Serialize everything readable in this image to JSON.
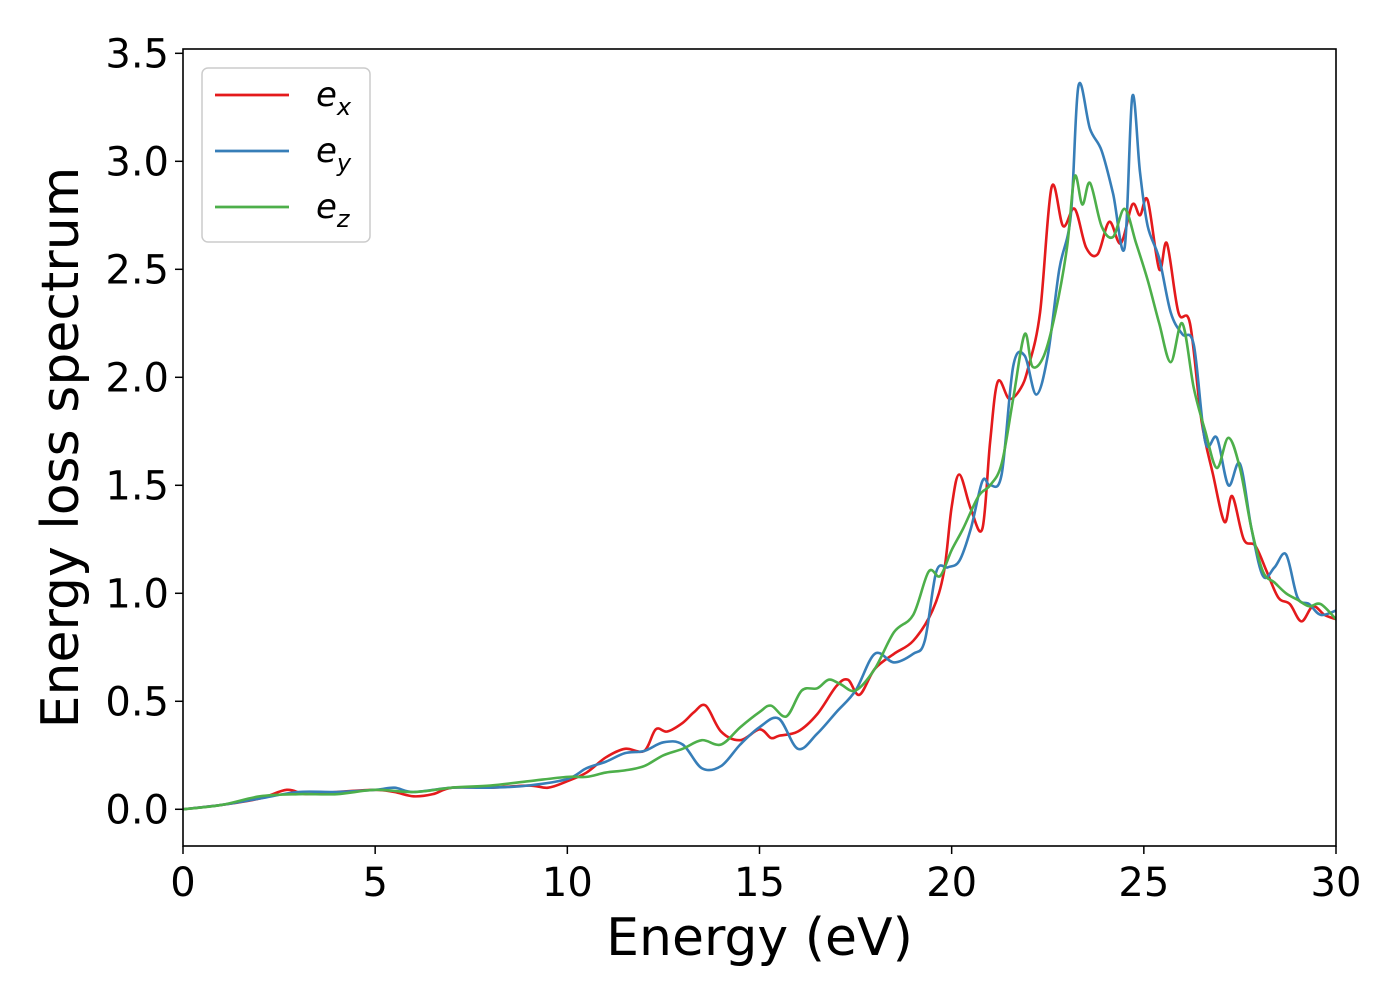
{
  "chart_data": {
    "type": "line",
    "xlabel": "Energy (eV)",
    "ylabel": "Energy loss spectrum",
    "xlim": [
      0,
      30
    ],
    "ylim": [
      -0.17,
      3.52
    ],
    "xticks": [
      0,
      5,
      10,
      15,
      20,
      25,
      30
    ],
    "yticks": [
      0.0,
      0.5,
      1.0,
      1.5,
      2.0,
      2.5,
      3.0,
      3.5
    ],
    "xtick_labels": [
      "0",
      "5",
      "10",
      "15",
      "20",
      "25",
      "30"
    ],
    "ytick_labels": [
      "0.0",
      "0.5",
      "1.0",
      "1.5",
      "2.0",
      "2.5",
      "3.0",
      "3.5"
    ],
    "grid": false,
    "legend_position": "top-left",
    "series": [
      {
        "name": "e_x",
        "legend_base": "e",
        "legend_sub": "x",
        "color": "#e41a1c",
        "x": [
          0,
          1,
          2,
          2.7,
          3.2,
          4,
          5,
          5.5,
          6,
          6.5,
          7,
          8,
          9,
          9.5,
          10,
          10.5,
          11,
          11.5,
          12,
          12.3,
          12.6,
          13,
          13.3,
          13.6,
          14,
          14.5,
          15,
          15.3,
          15.5,
          16,
          16.5,
          17,
          17.3,
          17.6,
          18,
          18.5,
          19,
          19.5,
          19.8,
          20,
          20.2,
          20.5,
          20.8,
          21,
          21.2,
          21.5,
          21.8,
          22,
          22.3,
          22.6,
          22.9,
          23.2,
          23.5,
          23.8,
          24.1,
          24.4,
          24.7,
          24.9,
          25.1,
          25.4,
          25.6,
          25.9,
          26.2,
          26.5,
          26.8,
          27.1,
          27.3,
          27.6,
          27.9,
          28.2,
          28.5,
          28.8,
          29.1,
          29.4,
          29.7,
          30
        ],
        "values": [
          0,
          0.02,
          0.05,
          0.09,
          0.07,
          0.08,
          0.09,
          0.08,
          0.06,
          0.07,
          0.1,
          0.1,
          0.11,
          0.1,
          0.13,
          0.17,
          0.24,
          0.28,
          0.27,
          0.37,
          0.36,
          0.4,
          0.45,
          0.48,
          0.36,
          0.32,
          0.37,
          0.33,
          0.34,
          0.36,
          0.44,
          0.57,
          0.6,
          0.53,
          0.65,
          0.72,
          0.78,
          0.92,
          1.1,
          1.4,
          1.55,
          1.39,
          1.3,
          1.7,
          1.98,
          1.9,
          1.95,
          2.05,
          2.3,
          2.88,
          2.7,
          2.78,
          2.6,
          2.57,
          2.72,
          2.62,
          2.8,
          2.75,
          2.82,
          2.5,
          2.62,
          2.3,
          2.25,
          1.8,
          1.55,
          1.33,
          1.45,
          1.25,
          1.22,
          1.1,
          0.98,
          0.95,
          0.87,
          0.94,
          0.9,
          0.88
        ]
      },
      {
        "name": "e_y",
        "legend_base": "e",
        "legend_sub": "y",
        "color": "#377eb8",
        "x": [
          0,
          1,
          2,
          3,
          4,
          5,
          5.5,
          6,
          7,
          8,
          9,
          10,
          10.5,
          11,
          11.5,
          12,
          12.5,
          13,
          13.5,
          14,
          14.5,
          15,
          15.5,
          16,
          16.5,
          17,
          17.5,
          18,
          18.5,
          19,
          19.3,
          19.6,
          19.9,
          20.2,
          20.5,
          20.8,
          21,
          21.3,
          21.6,
          21.9,
          22.2,
          22.5,
          22.8,
          23.1,
          23.3,
          23.6,
          23.9,
          24.2,
          24.5,
          24.7,
          24.9,
          25.1,
          25.4,
          25.7,
          26.0,
          26.3,
          26.6,
          26.9,
          27.2,
          27.5,
          27.8,
          28.1,
          28.4,
          28.7,
          29.0,
          29.3,
          29.6,
          30
        ],
        "values": [
          0,
          0.02,
          0.05,
          0.08,
          0.08,
          0.09,
          0.1,
          0.08,
          0.1,
          0.1,
          0.11,
          0.14,
          0.19,
          0.22,
          0.26,
          0.27,
          0.31,
          0.3,
          0.19,
          0.2,
          0.3,
          0.38,
          0.42,
          0.28,
          0.35,
          0.45,
          0.55,
          0.72,
          0.68,
          0.72,
          0.78,
          1.1,
          1.12,
          1.15,
          1.3,
          1.52,
          1.5,
          1.55,
          2.05,
          2.1,
          1.92,
          2.1,
          2.5,
          2.75,
          3.35,
          3.15,
          3.05,
          2.85,
          2.6,
          3.3,
          2.95,
          2.7,
          2.55,
          2.3,
          2.2,
          2.15,
          1.7,
          1.72,
          1.5,
          1.6,
          1.3,
          1.08,
          1.12,
          1.18,
          0.98,
          0.95,
          0.9,
          0.92
        ]
      },
      {
        "name": "e_z",
        "legend_base": "e",
        "legend_sub": "z",
        "color": "#4daf4a",
        "x": [
          0,
          1,
          2,
          3,
          4,
          5,
          6,
          7,
          8,
          9,
          10,
          10.5,
          11,
          11.5,
          12,
          12.5,
          13,
          13.5,
          14,
          14.5,
          15,
          15.3,
          15.7,
          16.1,
          16.5,
          16.8,
          17.1,
          17.5,
          18,
          18.5,
          19,
          19.4,
          19.7,
          20.0,
          20.3,
          20.7,
          21.0,
          21.3,
          21.6,
          21.9,
          22.1,
          22.4,
          22.7,
          23.0,
          23.2,
          23.4,
          23.6,
          23.9,
          24.2,
          24.5,
          24.8,
          25.1,
          25.4,
          25.7,
          26.0,
          26.3,
          26.6,
          26.9,
          27.2,
          27.5,
          27.8,
          28.1,
          28.4,
          28.7,
          29.0,
          29.3,
          29.6,
          30
        ],
        "values": [
          0,
          0.02,
          0.06,
          0.07,
          0.07,
          0.09,
          0.08,
          0.1,
          0.11,
          0.13,
          0.15,
          0.15,
          0.17,
          0.18,
          0.2,
          0.25,
          0.28,
          0.32,
          0.3,
          0.38,
          0.45,
          0.48,
          0.43,
          0.55,
          0.56,
          0.6,
          0.58,
          0.55,
          0.65,
          0.82,
          0.9,
          1.1,
          1.08,
          1.2,
          1.3,
          1.45,
          1.5,
          1.6,
          1.9,
          2.2,
          2.05,
          2.1,
          2.3,
          2.6,
          2.93,
          2.8,
          2.9,
          2.7,
          2.65,
          2.78,
          2.62,
          2.45,
          2.25,
          2.07,
          2.25,
          1.95,
          1.75,
          1.58,
          1.72,
          1.58,
          1.3,
          1.1,
          1.05,
          1.0,
          0.97,
          0.94,
          0.95,
          0.88
        ]
      }
    ]
  }
}
